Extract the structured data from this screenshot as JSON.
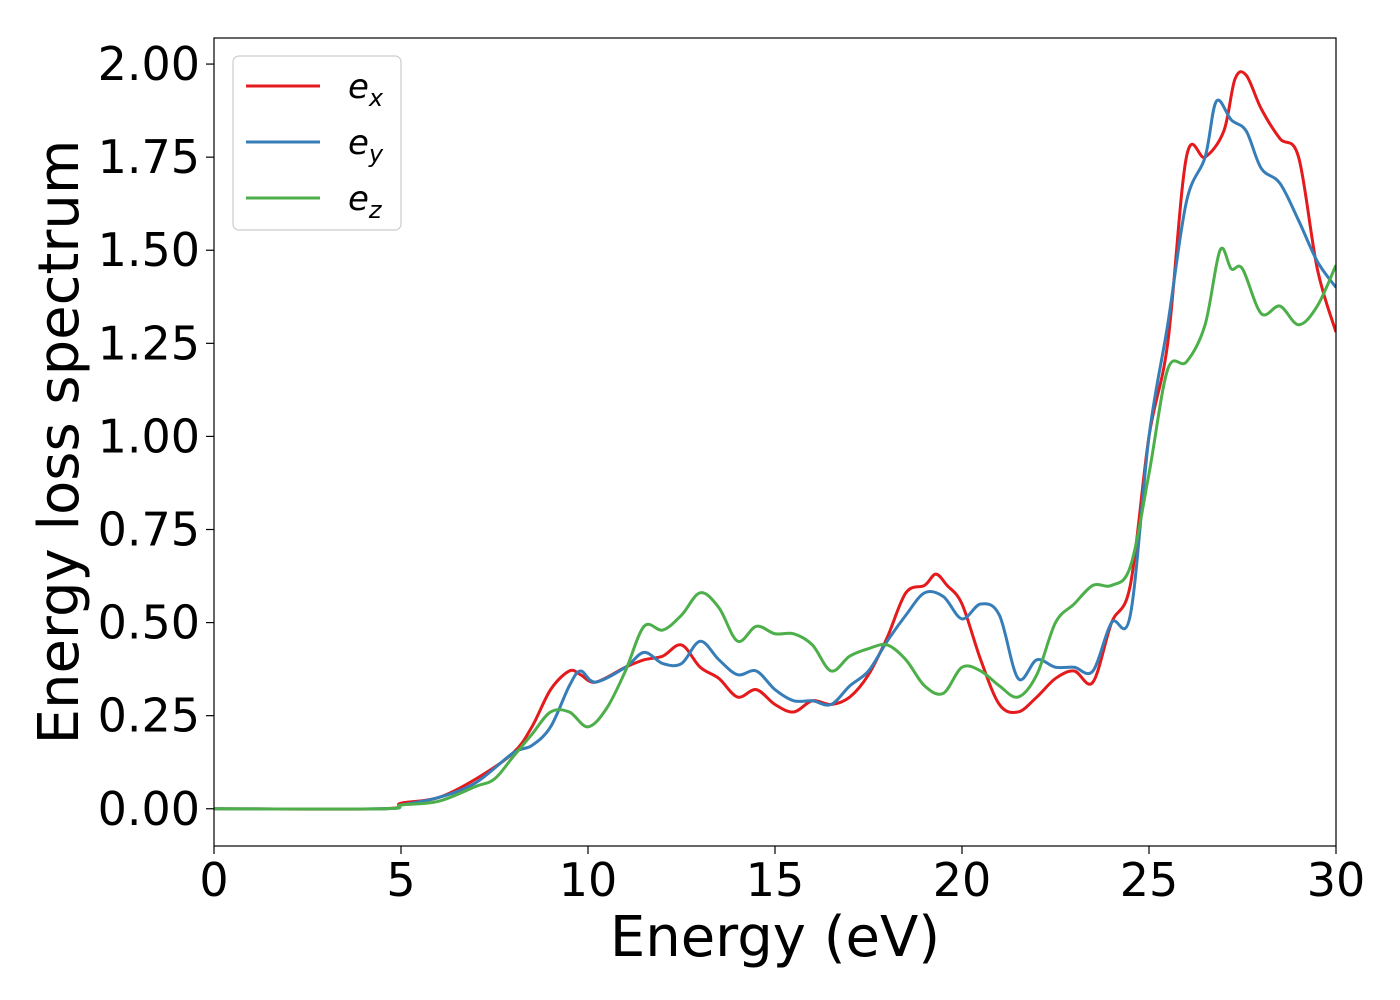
{
  "chart_data": {
    "type": "line",
    "title": "",
    "xlabel": "Energy (eV)",
    "ylabel": "Energy loss spectrum",
    "xlim": [
      0,
      30
    ],
    "ylim": [
      -0.1,
      2.07
    ],
    "xticks": [
      0,
      5,
      10,
      15,
      20,
      25,
      30
    ],
    "xtick_labels": [
      "0",
      "5",
      "10",
      "15",
      "20",
      "25",
      "30"
    ],
    "yticks": [
      0.0,
      0.25,
      0.5,
      0.75,
      1.0,
      1.25,
      1.5,
      1.75,
      2.0
    ],
    "ytick_labels": [
      "0.00",
      "0.25",
      "0.50",
      "0.75",
      "1.00",
      "1.25",
      "1.50",
      "1.75",
      "2.00"
    ],
    "grid": false,
    "legend_position": "top-left",
    "series": [
      {
        "name": "e",
        "subscript": "x",
        "color": "#e41a1c",
        "x": [
          0,
          4.5,
          5,
          6,
          7,
          8,
          8.5,
          9,
          9.5,
          9.8,
          10.2,
          11,
          11.5,
          12,
          12.5,
          13,
          13.5,
          14,
          14.5,
          15,
          15.5,
          16,
          16.5,
          17,
          17.5,
          18,
          18.5,
          19,
          19.3,
          19.6,
          20,
          20.5,
          21,
          21.5,
          22,
          22.5,
          23,
          23.5,
          24,
          24.5,
          25,
          25.5,
          26,
          26.5,
          27,
          27.3,
          27.6,
          28,
          28.5,
          29,
          29.5,
          30
        ],
        "y": [
          0.0,
          0.0,
          0.015,
          0.03,
          0.08,
          0.15,
          0.22,
          0.32,
          0.37,
          0.36,
          0.34,
          0.38,
          0.4,
          0.41,
          0.44,
          0.38,
          0.35,
          0.3,
          0.32,
          0.28,
          0.26,
          0.29,
          0.28,
          0.3,
          0.36,
          0.46,
          0.58,
          0.6,
          0.63,
          0.6,
          0.55,
          0.4,
          0.28,
          0.26,
          0.3,
          0.35,
          0.37,
          0.34,
          0.5,
          0.6,
          1.0,
          1.25,
          1.75,
          1.75,
          1.82,
          1.96,
          1.97,
          1.88,
          1.8,
          1.75,
          1.45,
          1.28
        ]
      },
      {
        "name": "e",
        "subscript": "y",
        "color": "#377eb8",
        "x": [
          0,
          4.5,
          5,
          6,
          7,
          8,
          8.5,
          9,
          9.5,
          9.8,
          10.2,
          11,
          11.5,
          12,
          12.5,
          13,
          13.5,
          14,
          14.5,
          15,
          15.5,
          16,
          16.5,
          17,
          17.5,
          18,
          18.5,
          19,
          19.5,
          20,
          20.5,
          21,
          21.5,
          22,
          22.5,
          23,
          23.5,
          24,
          24.5,
          25,
          25.5,
          26,
          26.5,
          26.8,
          27.2,
          27.6,
          28,
          28.5,
          29,
          29.5,
          30
        ],
        "y": [
          0.0,
          0.0,
          0.01,
          0.03,
          0.07,
          0.15,
          0.17,
          0.22,
          0.33,
          0.37,
          0.34,
          0.38,
          0.42,
          0.39,
          0.39,
          0.45,
          0.4,
          0.36,
          0.37,
          0.32,
          0.29,
          0.29,
          0.28,
          0.33,
          0.37,
          0.45,
          0.52,
          0.58,
          0.57,
          0.51,
          0.55,
          0.52,
          0.35,
          0.4,
          0.38,
          0.38,
          0.37,
          0.5,
          0.52,
          1.0,
          1.3,
          1.63,
          1.75,
          1.9,
          1.85,
          1.82,
          1.72,
          1.68,
          1.58,
          1.47,
          1.4
        ]
      },
      {
        "name": "e",
        "subscript": "z",
        "color": "#4daf4a",
        "x": [
          0,
          4.5,
          5,
          6,
          7,
          7.5,
          8,
          8.5,
          9,
          9.5,
          10,
          10.5,
          11,
          11.5,
          12,
          12.5,
          13,
          13.5,
          14,
          14.5,
          15,
          15.5,
          16,
          16.5,
          17,
          17.5,
          18,
          18.5,
          19,
          19.5,
          20,
          20.5,
          21,
          21.5,
          22,
          22.5,
          23,
          23.5,
          24,
          24.5,
          25,
          25.5,
          26,
          26.5,
          26.9,
          27.2,
          27.5,
          28,
          28.5,
          29,
          29.5,
          30
        ],
        "y": [
          0.0,
          0.0,
          0.01,
          0.02,
          0.06,
          0.08,
          0.14,
          0.2,
          0.26,
          0.26,
          0.22,
          0.27,
          0.37,
          0.49,
          0.48,
          0.52,
          0.58,
          0.54,
          0.45,
          0.49,
          0.47,
          0.47,
          0.44,
          0.37,
          0.41,
          0.43,
          0.44,
          0.4,
          0.33,
          0.31,
          0.38,
          0.37,
          0.33,
          0.3,
          0.36,
          0.5,
          0.55,
          0.6,
          0.6,
          0.65,
          0.9,
          1.18,
          1.2,
          1.3,
          1.5,
          1.45,
          1.45,
          1.33,
          1.35,
          1.3,
          1.35,
          1.46
        ]
      }
    ]
  }
}
